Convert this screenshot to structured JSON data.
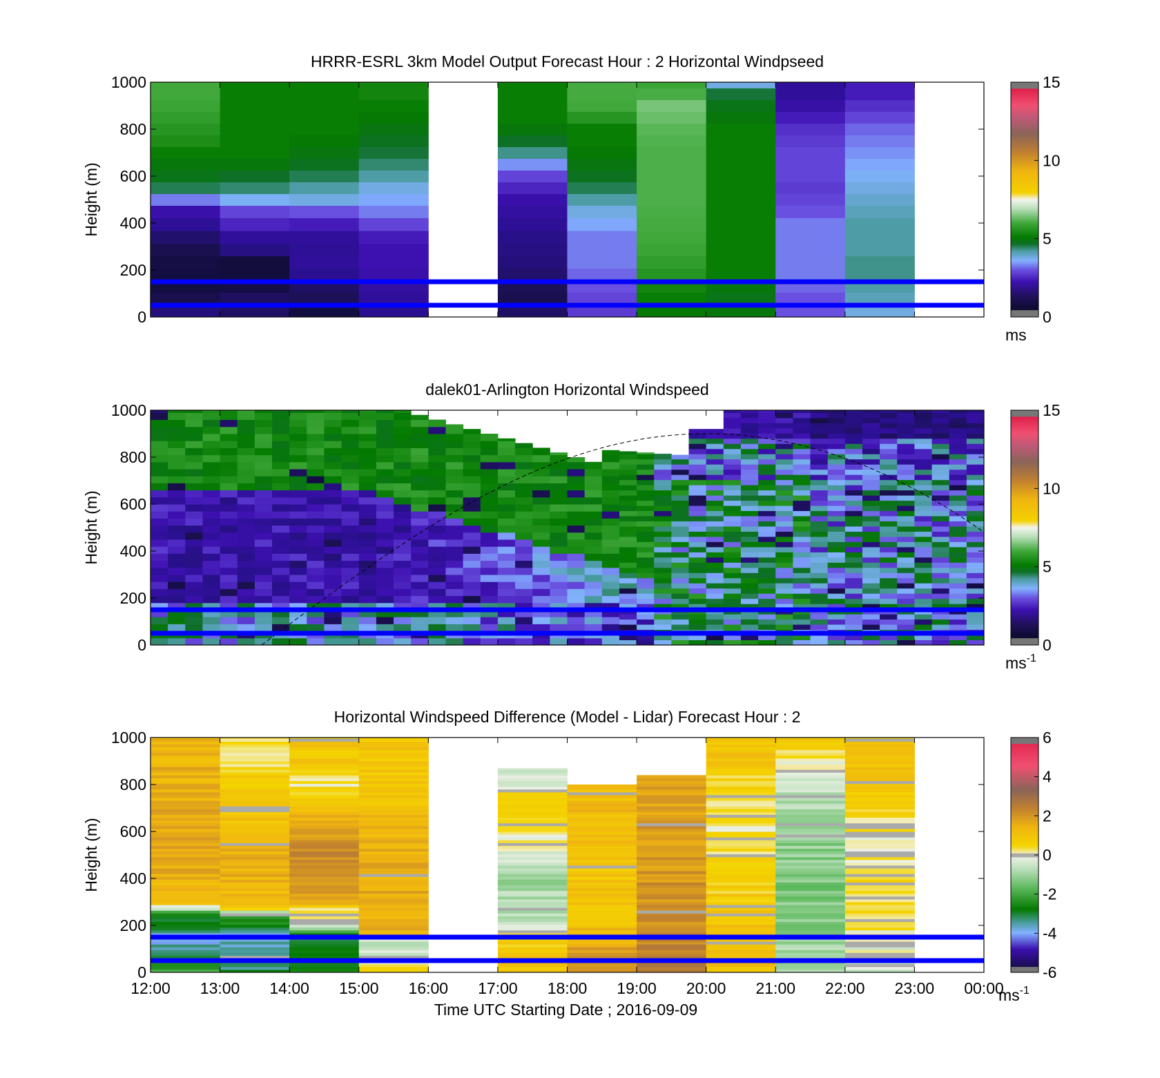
{
  "figure": {
    "xlabel": "Time UTC  Starting Date ; 2016-09-09",
    "x_tick_labels": [
      "12:00",
      "13:00",
      "14:00",
      "15:00",
      "16:00",
      "17:00",
      "18:00",
      "19:00",
      "20:00",
      "21:00",
      "22:00",
      "23:00",
      "00:00"
    ],
    "line_color": "#0000ff"
  },
  "chart_data": [
    {
      "type": "heatmap",
      "title": "HRRR-ESRL 3km Model Output   Forecast Hour : 2 Horizontal Windpseed",
      "ylabel": "Height (m)",
      "xlim": [
        12,
        24
      ],
      "ylim": [
        0,
        1000
      ],
      "y_ticks": [
        0,
        200,
        400,
        600,
        800,
        1000
      ],
      "reference_lines_m": [
        150,
        50
      ],
      "colorbar": {
        "range": [
          0,
          15
        ],
        "ticks": [
          0,
          5,
          10,
          15
        ],
        "unit": "ms"
      },
      "time_hours": [
        12,
        13,
        14,
        15,
        16,
        17,
        18,
        19,
        20,
        21,
        22,
        23
      ],
      "height_levels_m": [
        30,
        80,
        130,
        180,
        235,
        285,
        340,
        395,
        450,
        500,
        550,
        600,
        650,
        700,
        750,
        800,
        850,
        900,
        950,
        1000
      ],
      "speed_grid_ms": [
        [
          1.5,
          0.8,
          0.5,
          0.5,
          0.6,
          0.9,
          1.3,
          1.9,
          2.3,
          3.2,
          4.2,
          4.6,
          4.8,
          5.0,
          5.2,
          5.3,
          5.4,
          5.5,
          5.6,
          5.6
        ],
        [
          1.2,
          1.1,
          0.6,
          0.4,
          0.4,
          1.6,
          2.0,
          2.6,
          2.9,
          3.5,
          4.1,
          4.4,
          4.8,
          5.0,
          5.0,
          5.0,
          5.0,
          5.0,
          5.0,
          5.0
        ],
        [
          0.5,
          1.0,
          1.2,
          1.8,
          2.0,
          1.9,
          2.0,
          2.5,
          3.0,
          3.6,
          3.9,
          4.2,
          4.5,
          4.7,
          4.9,
          5.0,
          5.0,
          5.0,
          5.0,
          5.0
        ],
        [
          1.8,
          2.0,
          2.1,
          2.3,
          2.4,
          2.4,
          2.5,
          2.9,
          3.2,
          3.4,
          3.6,
          3.9,
          4.1,
          4.3,
          4.5,
          4.7,
          4.9,
          5.0,
          5.1,
          5.1
        ],
        null,
        [
          1.2,
          0.9,
          1.0,
          1.3,
          1.5,
          1.6,
          1.7,
          1.9,
          2.1,
          2.3,
          2.6,
          2.9,
          3.3,
          4.0,
          4.4,
          4.8,
          5.0,
          5.0,
          5.0,
          5.0
        ],
        [
          2.8,
          2.9,
          3.0,
          3.1,
          3.2,
          3.2,
          3.2,
          3.4,
          3.6,
          3.9,
          4.2,
          4.5,
          4.7,
          4.9,
          5.0,
          5.0,
          5.3,
          5.6,
          5.7,
          5.7
        ],
        [
          4.9,
          5.0,
          5.1,
          5.3,
          5.4,
          5.5,
          5.6,
          5.7,
          5.8,
          5.9,
          5.9,
          5.9,
          5.9,
          5.9,
          6.0,
          6.2,
          6.4,
          6.5,
          5.8,
          5.5
        ],
        [
          4.8,
          4.6,
          4.8,
          5.0,
          5.0,
          5.0,
          5.0,
          5.0,
          5.0,
          5.0,
          5.0,
          5.0,
          5.0,
          5.0,
          5.0,
          5.0,
          4.8,
          4.6,
          4.3,
          3.6
        ],
        [
          3.0,
          3.0,
          3.1,
          3.2,
          3.2,
          3.2,
          3.2,
          3.2,
          3.0,
          2.9,
          2.8,
          2.9,
          2.9,
          2.9,
          2.8,
          2.7,
          2.5,
          2.2,
          2.0,
          2.0
        ],
        [
          3.6,
          3.8,
          3.9,
          4.0,
          4.0,
          3.9,
          3.9,
          3.9,
          3.8,
          3.7,
          3.6,
          3.5,
          3.4,
          3.3,
          3.2,
          3.1,
          2.9,
          2.7,
          2.5,
          2.5
        ],
        null
      ]
    },
    {
      "type": "heatmap",
      "title": "dalek01-Arlington  Horizontal Windspeed",
      "ylabel": "Height (m)",
      "xlim": [
        12,
        24
      ],
      "ylim": [
        0,
        1000
      ],
      "y_ticks": [
        0,
        200,
        400,
        600,
        800,
        1000
      ],
      "reference_lines_m": [
        150,
        50
      ],
      "colorbar": {
        "range": [
          0,
          15
        ],
        "ticks": [
          0,
          5,
          10,
          15
        ],
        "unit": "ms",
        "unit_exponent": "-1"
      },
      "data_end_hour": 23.85,
      "overlay_curve": {
        "style": "dashed",
        "start": [
          13.6,
          0
        ],
        "peak": [
          20.0,
          900
        ],
        "end": [
          24.0,
          480
        ]
      }
    },
    {
      "type": "heatmap",
      "title": "Horizontal Windspeed Difference (Model - Lidar) Forecast Hour : 2",
      "ylabel": "Height (m)",
      "xlabel": "Time UTC  Starting Date ; 2016-09-09",
      "xlim": [
        12,
        24
      ],
      "ylim": [
        0,
        1000
      ],
      "y_ticks": [
        0,
        200,
        400,
        600,
        800,
        1000
      ],
      "reference_lines_m": [
        150,
        50
      ],
      "colorbar": {
        "range": [
          -6,
          6
        ],
        "ticks": [
          -6,
          -4,
          -2,
          0,
          2,
          4,
          6
        ],
        "unit": "ms",
        "unit_exponent": "-1"
      },
      "time_hours": [
        12,
        13,
        14,
        15,
        16,
        17,
        18,
        19,
        20,
        21,
        22,
        23
      ],
      "column_top_m": [
        1000,
        1000,
        1000,
        1000,
        null,
        870,
        800,
        840,
        1000,
        1000,
        1000,
        null
      ],
      "profiles_ms": [
        [
          [
            0,
            -2.0
          ],
          [
            100,
            -3.5
          ],
          [
            150,
            -4.0
          ],
          [
            200,
            -3.0
          ],
          [
            250,
            -2.5
          ],
          [
            290,
            0.8
          ],
          [
            400,
            1.4
          ],
          [
            500,
            1.8
          ],
          [
            600,
            1.6
          ],
          [
            800,
            1.5
          ],
          [
            1000,
            1.4
          ]
        ],
        [
          [
            0,
            -3.0
          ],
          [
            100,
            -3.8
          ],
          [
            150,
            -3.6
          ],
          [
            200,
            -3.0
          ],
          [
            250,
            -1.5
          ],
          [
            280,
            1.2
          ],
          [
            450,
            1.5
          ],
          [
            650,
            1.2
          ],
          [
            800,
            0.8
          ],
          [
            900,
            0.3
          ],
          [
            1000,
            0.2
          ]
        ],
        [
          [
            0,
            -2.5
          ],
          [
            100,
            -3.0
          ],
          [
            150,
            -3.6
          ],
          [
            200,
            -0.5
          ],
          [
            270,
            0.5
          ],
          [
            300,
            1.5
          ],
          [
            450,
            2.2
          ],
          [
            600,
            2.0
          ],
          [
            700,
            1.0
          ],
          [
            800,
            0.2
          ],
          [
            900,
            0.8
          ],
          [
            1000,
            1.0
          ]
        ],
        [
          [
            0,
            0.8
          ],
          [
            60,
            -0.6
          ],
          [
            150,
            -0.6
          ],
          [
            160,
            1.4
          ],
          [
            300,
            1.6
          ],
          [
            500,
            1.5
          ],
          [
            700,
            1.2
          ],
          [
            800,
            0.9
          ],
          [
            1000,
            1.0
          ]
        ],
        null,
        [
          [
            0,
            0.8
          ],
          [
            100,
            1.0
          ],
          [
            200,
            -0.5
          ],
          [
            400,
            -0.9
          ],
          [
            600,
            0.3
          ],
          [
            700,
            0.6
          ],
          [
            870,
            -0.6
          ]
        ],
        [
          [
            0,
            2.2
          ],
          [
            150,
            1.5
          ],
          [
            200,
            1.1
          ],
          [
            400,
            0.9
          ],
          [
            500,
            1.2
          ],
          [
            650,
            1.3
          ],
          [
            800,
            1.1
          ]
        ],
        [
          [
            0,
            2.6
          ],
          [
            300,
            2.0
          ],
          [
            500,
            2.0
          ],
          [
            700,
            1.8
          ],
          [
            840,
            1.8
          ]
        ],
        [
          [
            0,
            1.1
          ],
          [
            200,
            1.0
          ],
          [
            400,
            0.6
          ],
          [
            600,
            0.2
          ],
          [
            800,
            0.4
          ],
          [
            900,
            1.1
          ],
          [
            1000,
            1.0
          ]
        ],
        [
          [
            0,
            -0.8
          ],
          [
            200,
            -1.2
          ],
          [
            400,
            -1.3
          ],
          [
            600,
            -1.1
          ],
          [
            800,
            -0.6
          ],
          [
            950,
            0.5
          ],
          [
            1000,
            0.8
          ]
        ],
        [
          [
            0,
            -0.5
          ],
          [
            200,
            0.2
          ],
          [
            400,
            0.3
          ],
          [
            600,
            0.1
          ],
          [
            700,
            0.6
          ],
          [
            800,
            1.0
          ],
          [
            1000,
            1.0
          ]
        ],
        null
      ]
    }
  ]
}
